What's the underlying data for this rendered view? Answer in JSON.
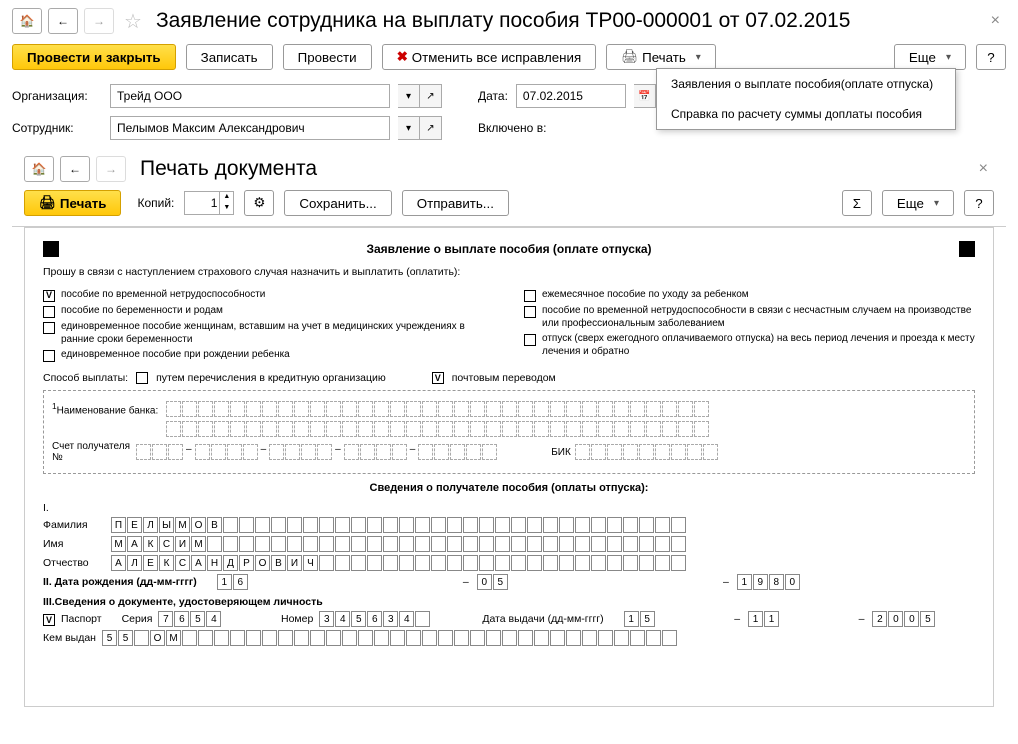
{
  "header": {
    "title": "Заявление сотрудника на выплату пособия ТР00-000001 от 07.02.2015"
  },
  "toolbar": {
    "post_close": "Провести и закрыть",
    "save": "Записать",
    "post": "Провести",
    "cancel_all": "Отменить все исправления",
    "print": "Печать",
    "more": "Еще",
    "help": "?"
  },
  "print_menu": {
    "item1": "Заявления о выплате пособия(оплате отпуска)",
    "item2": "Справка по расчету суммы доплаты пособия"
  },
  "form": {
    "org_label": "Организация:",
    "org_value": "Трейд ООО",
    "date_label": "Дата:",
    "date_value": "07.02.2015",
    "employee_label": "Сотрудник:",
    "employee_value": "Пелымов Максим Александрович",
    "included_label": "Включено в:"
  },
  "print_window": {
    "title": "Печать документа",
    "print_btn": "Печать",
    "copies_label": "Копий:",
    "copies_value": "1",
    "save_btn": "Сохранить...",
    "send_btn": "Отправить...",
    "more": "Еще",
    "help": "?"
  },
  "doc": {
    "title": "Заявление о выплате пособия (оплате отпуска)",
    "intro": "Прошу в связи с наступлением страхового случая назначить и выплатить (оплатить):",
    "left_checks": [
      {
        "checked": true,
        "label": "пособие по временной нетрудоспособности"
      },
      {
        "checked": false,
        "label": "пособие по беременности и родам"
      },
      {
        "checked": false,
        "label": "единовременное пособие женщинам, вставшим на учет в медицинских учреждениях в ранние сроки беременности"
      },
      {
        "checked": false,
        "label": "единовременное пособие при рождении ребенка"
      }
    ],
    "right_checks": [
      {
        "checked": false,
        "label": "ежемесячное пособие по уходу за ребенком"
      },
      {
        "checked": false,
        "label": "пособие по временной нетрудоспособности в связи с несчастным случаем на производстве или профессиональным заболеванием"
      },
      {
        "checked": false,
        "label": "отпуск (сверх ежегодного оплачиваемого отпуска) на весь период лечения и проезда к месту лечения и обратно"
      }
    ],
    "pay_method_label": "Способ выплаты:",
    "pay_method_1": {
      "checked": false,
      "label": "путем перечисления в кредитную организацию"
    },
    "pay_method_2": {
      "checked": true,
      "label": "почтовым переводом"
    },
    "bank_name_label": "Наименование банка:",
    "account_label": "Счет получателя №",
    "bik_label": "БИК",
    "section_title": "Сведения о получателе пособия (оплаты отпуска):",
    "roman1": "I.",
    "surname_label": "Фамилия",
    "surname": "ПЕЛЫМОВ",
    "name_label": "Имя",
    "name": "МАКСИМ",
    "patronymic_label": "Отчество",
    "patronymic": "АЛЕКСАНДРОВИЧ",
    "roman2": "II. Дата рождения (дд-мм-гггг)",
    "dob_d": "16",
    "dob_m": "05",
    "dob_y": "1980",
    "roman3": "III.Сведения о документе, удостоверяющем личность",
    "passport_label": "Паспорт",
    "series_label": "Серия",
    "series": "7654",
    "number_label": "Номер",
    "number": "345634",
    "issue_date_label": "Дата выдачи (дд-мм-гггг)",
    "issue_d": "15",
    "issue_m": "11",
    "issue_y": "2005",
    "issued_by_label": "Кем выдан",
    "issued_by": "55 ОМ"
  }
}
